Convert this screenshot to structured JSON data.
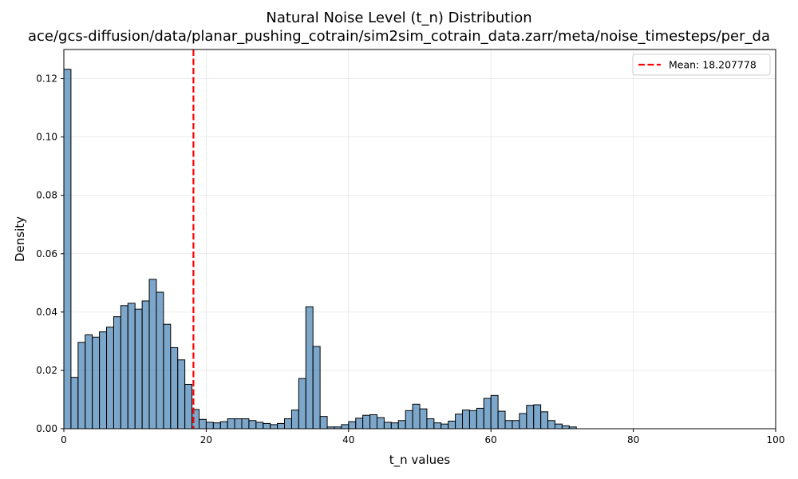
{
  "chart_data": {
    "type": "bar",
    "title": "Natural Noise Level (t_n) Distribution",
    "subtitle": "ace/gcs-diffusion/data/planar_pushing_cotrain/sim2sim_cotrain_data.zarr/meta/noise_timesteps/per_da",
    "xlabel": "t_n values",
    "ylabel": "Density",
    "xlim": [
      0,
      100
    ],
    "ylim": [
      0,
      0.13
    ],
    "xticks": [
      0,
      20,
      40,
      60,
      80,
      100
    ],
    "xtick_labels": [
      "0",
      "20",
      "40",
      "60",
      "80",
      "100"
    ],
    "yticks": [
      0.0,
      0.02,
      0.04,
      0.06,
      0.08,
      0.1,
      0.12
    ],
    "ytick_labels": [
      "0.00",
      "0.02",
      "0.04",
      "0.06",
      "0.08",
      "0.10",
      "0.12"
    ],
    "grid": true,
    "bin_width": 1,
    "bin_starts": [
      0,
      1,
      2,
      3,
      4,
      5,
      6,
      7,
      8,
      9,
      10,
      11,
      12,
      13,
      14,
      15,
      16,
      17,
      18,
      19,
      20,
      21,
      22,
      23,
      24,
      25,
      26,
      27,
      28,
      29,
      30,
      31,
      32,
      33,
      34,
      35,
      36,
      37,
      38,
      39,
      40,
      41,
      42,
      43,
      44,
      45,
      46,
      47,
      48,
      49,
      50,
      51,
      52,
      53,
      54,
      55,
      56,
      57,
      58,
      59,
      60,
      61,
      62,
      63,
      64,
      65,
      66,
      67,
      68,
      69,
      70,
      71
    ],
    "values": [
      0.1232,
      0.0176,
      0.0296,
      0.0322,
      0.0314,
      0.0332,
      0.0348,
      0.0384,
      0.0422,
      0.043,
      0.041,
      0.0438,
      0.0512,
      0.0468,
      0.0358,
      0.0278,
      0.0236,
      0.0152,
      0.0066,
      0.0032,
      0.0022,
      0.002,
      0.0024,
      0.0034,
      0.0034,
      0.0034,
      0.0028,
      0.0022,
      0.0018,
      0.0014,
      0.0018,
      0.0034,
      0.0064,
      0.0172,
      0.0418,
      0.0282,
      0.0042,
      0.0006,
      0.0006,
      0.0014,
      0.0024,
      0.0036,
      0.0046,
      0.0048,
      0.0038,
      0.0022,
      0.002,
      0.0028,
      0.0062,
      0.0084,
      0.0068,
      0.0034,
      0.002,
      0.0016,
      0.0026,
      0.005,
      0.0064,
      0.0062,
      0.007,
      0.0104,
      0.0114,
      0.006,
      0.0028,
      0.0028,
      0.0052,
      0.008,
      0.0082,
      0.0058,
      0.0028,
      0.0016,
      0.001,
      0.0006
    ],
    "bar_color": "#4682b4",
    "bar_edge_color": "#000000",
    "mean_line": {
      "x": 18.207778,
      "color": "#ff0000",
      "style": "dashed"
    },
    "legend": {
      "position": "top-right",
      "entries": [
        "Mean: 18.207778"
      ]
    }
  }
}
